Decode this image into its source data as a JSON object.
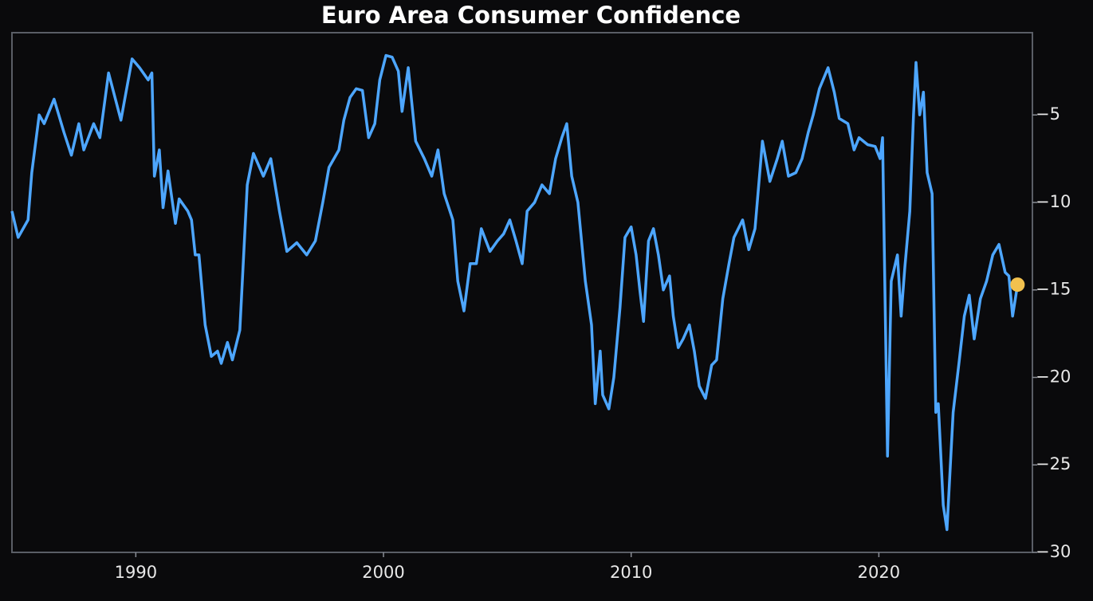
{
  "chart_data": {
    "type": "line",
    "title": "Euro Area Consumer Confidence",
    "x": [
      1985.0,
      1985.25,
      1985.65,
      1985.8,
      1986.1,
      1986.3,
      1986.7,
      1987.1,
      1987.4,
      1987.7,
      1987.9,
      1988.3,
      1988.55,
      1988.9,
      1989.4,
      1989.85,
      1990.15,
      1990.5,
      1990.65,
      1990.75,
      1990.95,
      1991.1,
      1991.3,
      1991.6,
      1991.75,
      1992.1,
      1992.25,
      1992.4,
      1992.55,
      1992.8,
      1993.05,
      1993.3,
      1993.45,
      1993.7,
      1993.9,
      1994.2,
      1994.5,
      1994.75,
      1995.15,
      1995.45,
      1995.8,
      1996.1,
      1996.5,
      1996.9,
      1997.25,
      1997.55,
      1997.8,
      1998.2,
      1998.4,
      1998.65,
      1998.9,
      1999.15,
      1999.4,
      1999.65,
      1999.85,
      2000.1,
      2000.35,
      2000.6,
      2000.75,
      2001.0,
      2001.3,
      2001.65,
      2001.95,
      2002.2,
      2002.45,
      2002.8,
      2003.0,
      2003.25,
      2003.5,
      2003.75,
      2003.95,
      2004.3,
      2004.6,
      2004.85,
      2005.1,
      2005.35,
      2005.6,
      2005.8,
      2006.1,
      2006.4,
      2006.7,
      2006.95,
      2007.2,
      2007.4,
      2007.6,
      2007.85,
      2008.15,
      2008.4,
      2008.55,
      2008.75,
      2008.85,
      2009.1,
      2009.3,
      2009.55,
      2009.75,
      2010.0,
      2010.2,
      2010.35,
      2010.5,
      2010.7,
      2010.9,
      2011.1,
      2011.3,
      2011.55,
      2011.7,
      2011.9,
      2012.1,
      2012.35,
      2012.55,
      2012.75,
      2013.0,
      2013.25,
      2013.45,
      2013.7,
      2013.95,
      2014.15,
      2014.5,
      2014.75,
      2015.0,
      2015.3,
      2015.6,
      2015.9,
      2016.1,
      2016.35,
      2016.65,
      2016.9,
      2017.15,
      2017.35,
      2017.6,
      2017.95,
      2018.2,
      2018.4,
      2018.75,
      2019.0,
      2019.2,
      2019.55,
      2019.85,
      2020.05,
      2020.15,
      2020.35,
      2020.5,
      2020.75,
      2020.9,
      2021.05,
      2021.25,
      2021.4,
      2021.5,
      2021.65,
      2021.8,
      2021.95,
      2022.15,
      2022.3,
      2022.4,
      2022.6,
      2022.75,
      2023.0,
      2023.25,
      2023.45,
      2023.65,
      2023.85,
      2024.1,
      2024.35,
      2024.6,
      2024.85,
      2025.1,
      2025.25,
      2025.4,
      2025.6
    ],
    "values": [
      -10.5,
      -12,
      -11,
      -8.3,
      -5,
      -5.5,
      -4.1,
      -6,
      -7.3,
      -5.5,
      -7,
      -5.5,
      -6.3,
      -2.6,
      -5.3,
      -1.8,
      -2.3,
      -3,
      -2.6,
      -8.5,
      -7,
      -10.3,
      -8.2,
      -11.2,
      -9.8,
      -10.5,
      -11,
      -13,
      -13,
      -17,
      -18.8,
      -18.5,
      -19.2,
      -18,
      -19,
      -17.3,
      -9,
      -7.2,
      -8.5,
      -7.5,
      -10.5,
      -12.8,
      -12.3,
      -13,
      -12.2,
      -10,
      -8,
      -7,
      -5.3,
      -4,
      -3.5,
      -3.6,
      -6.3,
      -5.5,
      -3,
      -1.6,
      -1.7,
      -2.5,
      -4.8,
      -2.3,
      -6.5,
      -7.5,
      -8.5,
      -7,
      -9.5,
      -11,
      -14.5,
      -16.2,
      -13.5,
      -13.5,
      -11.5,
      -12.8,
      -12.2,
      -11.8,
      -11,
      -12.2,
      -13.5,
      -10.5,
      -10,
      -9,
      -9.5,
      -7.5,
      -6.3,
      -5.5,
      -8.5,
      -10,
      -14.5,
      -17,
      -21.5,
      -18.5,
      -21,
      -21.8,
      -20,
      -16,
      -12,
      -11.4,
      -13,
      -15,
      -16.8,
      -12.2,
      -11.5,
      -13,
      -15,
      -14.2,
      -16.5,
      -18.3,
      -17.8,
      -17,
      -18.5,
      -20.5,
      -21.2,
      -19.3,
      -19,
      -15.5,
      -13.5,
      -12,
      -11,
      -12.7,
      -11.5,
      -6.5,
      -8.8,
      -7.5,
      -6.5,
      -8.5,
      -8.3,
      -7.5,
      -6,
      -5,
      -3.5,
      -2.3,
      -3.7,
      -5.2,
      -5.5,
      -7,
      -6.3,
      -6.7,
      -6.8,
      -7.5,
      -6.3,
      -24.5,
      -14.5,
      -13,
      -16.5,
      -13.7,
      -10.5,
      -5,
      -2,
      -5,
      -3.7,
      -8.3,
      -9.5,
      -22,
      -21.5,
      -27.3,
      -28.7,
      -22,
      -19,
      -16.5,
      -15.3,
      -17.8,
      -15.5,
      -14.5,
      -13,
      -12.4,
      -14,
      -14.2,
      -16.5,
      -14.7
    ],
    "color": "#4da6ff",
    "last_point_color": "#f2c14e",
    "xlim": [
      1985.0,
      2026.2
    ],
    "xticks": [
      1990,
      2000,
      2010,
      2020
    ],
    "ylim": [
      -30,
      -0.3
    ],
    "yticks": [
      {
        "value": -5,
        "label": "−5"
      },
      {
        "value": -10,
        "label": "−10"
      },
      {
        "value": -15,
        "label": "−15"
      },
      {
        "value": -20,
        "label": "−20"
      },
      {
        "value": -25,
        "label": "−25"
      },
      {
        "value": -30,
        "label": "−30"
      }
    ]
  }
}
